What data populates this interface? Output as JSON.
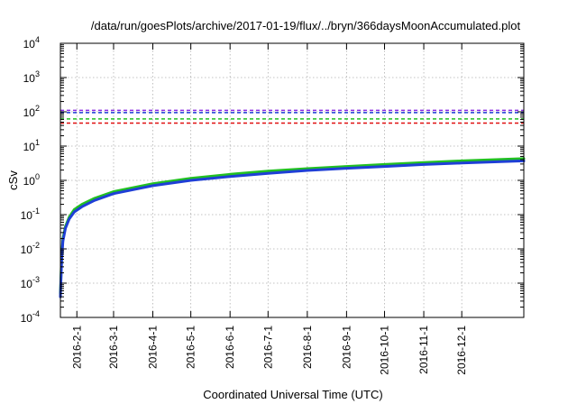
{
  "chart_data": {
    "type": "line",
    "title": "/data/run/goesPlots/archive/2017-01-19/flux/../bryn/366daysMoonAccumulated.plot",
    "xlabel": "Coordinated Universal Time (UTC)",
    "ylabel": "cSv",
    "y_scale": "log",
    "ylim": [
      0.0001,
      10000
    ],
    "y_ticks": [
      {
        "base": "10",
        "exp": "-4"
      },
      {
        "base": "10",
        "exp": "-3"
      },
      {
        "base": "10",
        "exp": "-2"
      },
      {
        "base": "10",
        "exp": "-1"
      },
      {
        "base": "10",
        "exp": "0"
      },
      {
        "base": "10",
        "exp": "1"
      },
      {
        "base": "10",
        "exp": "2"
      },
      {
        "base": "10",
        "exp": "3"
      },
      {
        "base": "10",
        "exp": "4"
      }
    ],
    "xlim": [
      "2016-01-19",
      "2017-01-19"
    ],
    "x_ticks": [
      {
        "date": "2016-02-01",
        "label": "2016-2-1"
      },
      {
        "date": "2016-03-01",
        "label": "2016-3-1"
      },
      {
        "date": "2016-04-01",
        "label": "2016-4-1"
      },
      {
        "date": "2016-05-01",
        "label": "2016-5-1"
      },
      {
        "date": "2016-06-01",
        "label": "2016-6-1"
      },
      {
        "date": "2016-07-01",
        "label": "2016-7-1"
      },
      {
        "date": "2016-08-01",
        "label": "2016-8-1"
      },
      {
        "date": "2016-09-01",
        "label": "2016-9-1"
      },
      {
        "date": "2016-10-01",
        "label": "2016-10-1"
      },
      {
        "date": "2016-11-01",
        "label": "2016-11-1"
      },
      {
        "date": "2016-12-01",
        "label": "2016-12-1"
      }
    ],
    "grid": true,
    "legend": "none",
    "thresholds": [
      {
        "value": 110,
        "color": "#8a2be2"
      },
      {
        "value": 95,
        "color": "#1f3fd6"
      },
      {
        "value": 62,
        "color": "#22c022"
      },
      {
        "value": 47,
        "color": "#e01010"
      }
    ],
    "series": [
      {
        "color": "#22c022",
        "x": [
          "2016-01-19",
          "2016-01-20",
          "2016-01-21",
          "2016-01-23",
          "2016-01-26",
          "2016-01-30",
          "2016-02-05",
          "2016-02-15",
          "2016-03-01",
          "2016-04-01",
          "2016-05-01",
          "2016-06-01",
          "2016-07-01",
          "2016-08-01",
          "2016-09-01",
          "2016-10-01",
          "2016-11-01",
          "2016-12-01",
          "2017-01-19"
        ],
        "y": [
          0.0005,
          0.006,
          0.02,
          0.045,
          0.085,
          0.14,
          0.2,
          0.3,
          0.47,
          0.8,
          1.15,
          1.5,
          1.85,
          2.2,
          2.55,
          2.9,
          3.3,
          3.7,
          4.3
        ]
      },
      {
        "color": "#1f3fd6",
        "x": [
          "2016-01-19",
          "2016-01-20",
          "2016-01-21",
          "2016-01-23",
          "2016-01-26",
          "2016-01-30",
          "2016-02-05",
          "2016-02-15",
          "2016-03-01",
          "2016-04-01",
          "2016-05-01",
          "2016-06-01",
          "2016-07-01",
          "2016-08-01",
          "2016-09-01",
          "2016-10-01",
          "2016-11-01",
          "2016-12-01",
          "2017-01-19"
        ],
        "y": [
          0.0004,
          0.005,
          0.017,
          0.04,
          0.075,
          0.12,
          0.17,
          0.26,
          0.41,
          0.7,
          1.0,
          1.3,
          1.6,
          1.95,
          2.25,
          2.55,
          2.9,
          3.2,
          3.7
        ]
      }
    ]
  }
}
